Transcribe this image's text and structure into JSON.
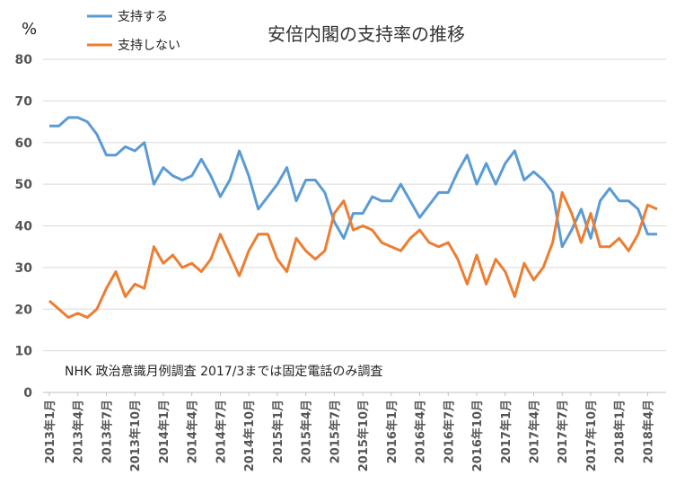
{
  "chart_data": {
    "type": "line",
    "title": "安倍内閣の支持率の推移",
    "ylabel": "%",
    "ylim": [
      0,
      80
    ],
    "yticks": [
      0,
      10,
      20,
      30,
      40,
      50,
      60,
      70,
      80
    ],
    "grid": true,
    "legend_position": "top-left",
    "note": "NHK 政治意識月例調査 2017/3までは固定電話のみ調査",
    "x_tick_labels": [
      "2013年1月",
      "2013年4月",
      "2013年7月",
      "2013年10月",
      "2014年1月",
      "2014年4月",
      "2014年7月",
      "2014年10月",
      "2015年1月",
      "2015年4月",
      "2015年7月",
      "2015年10月",
      "2016年1月",
      "2016年4月",
      "2016年7月",
      "2016年10月",
      "2017年1月",
      "2017年4月",
      "2017年7月",
      "2017年10月",
      "2018年1月",
      "2018年4月"
    ],
    "series": [
      {
        "name": "支持する",
        "color": "#5b9bd5",
        "values": [
          64,
          64,
          66,
          66,
          65,
          62,
          57,
          57,
          59,
          58,
          60,
          50,
          54,
          52,
          51,
          52,
          56,
          52,
          47,
          51,
          58,
          52,
          44,
          47,
          50,
          54,
          46,
          51,
          51,
          48,
          41,
          37,
          43,
          43,
          47,
          46,
          46,
          50,
          46,
          42,
          45,
          48,
          48,
          53,
          57,
          50,
          55,
          50,
          55,
          58,
          51,
          53,
          51,
          48,
          35,
          39,
          44,
          37,
          46,
          49,
          46,
          46,
          44,
          38,
          38
        ]
      },
      {
        "name": "支持しない",
        "color": "#ed7d31",
        "values": [
          22,
          20,
          18,
          19,
          18,
          20,
          25,
          29,
          23,
          26,
          25,
          35,
          31,
          33,
          30,
          31,
          29,
          32,
          38,
          33,
          28,
          34,
          38,
          38,
          32,
          29,
          37,
          34,
          32,
          34,
          43,
          46,
          39,
          40,
          39,
          36,
          35,
          34,
          37,
          39,
          36,
          35,
          36,
          32,
          26,
          33,
          26,
          32,
          29,
          23,
          31,
          27,
          30,
          36,
          48,
          43,
          36,
          43,
          35,
          35,
          37,
          34,
          38,
          45,
          44
        ]
      }
    ]
  }
}
